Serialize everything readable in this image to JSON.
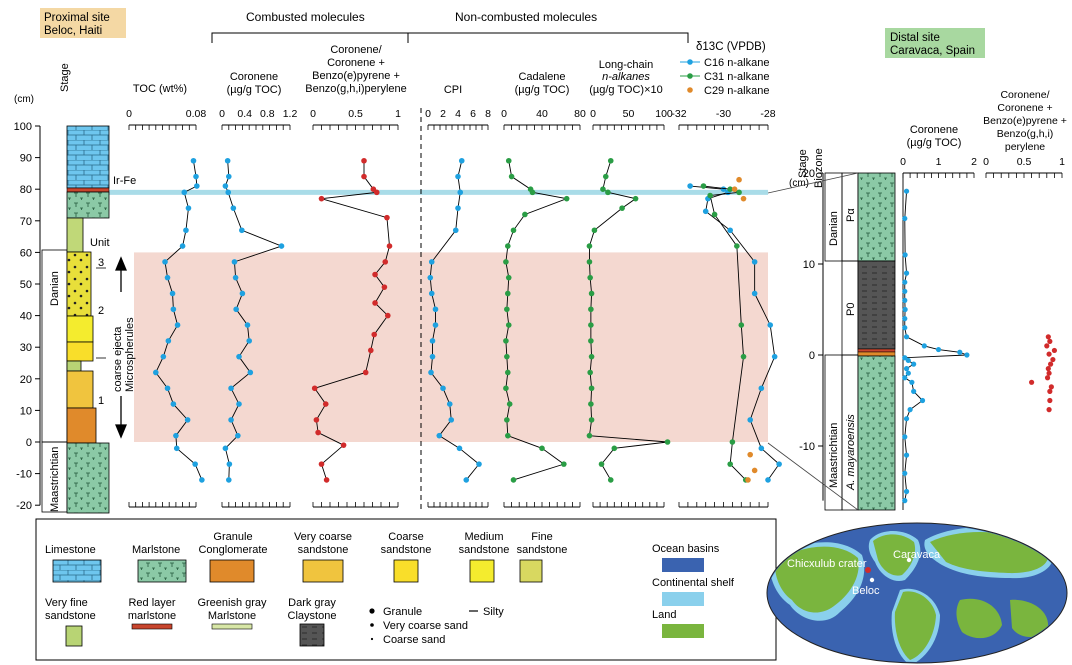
{
  "proximal": {
    "title1": "Proximal site",
    "title2": "Beloc, Haiti"
  },
  "distal": {
    "title1": "Distal site",
    "title2": "Caravaca, Spain"
  },
  "groups": {
    "combusted": "Combusted molecules",
    "noncombusted": "Non-combusted molecules"
  },
  "unit_label": "Unit",
  "units": [
    "3",
    "2",
    "1"
  ],
  "stage_header": "Stage",
  "biozone_header": "Biozone",
  "cm_label": "(cm)",
  "stages_left": {
    "danian": "Danian",
    "maastrichtian": "Maastrichtian"
  },
  "stages_right": {
    "danian": "Danian",
    "maastrichtian": "Maastrichtian"
  },
  "biozones": {
    "pa": "Pα",
    "p0": "P0",
    "amay": "A. mayaroensis"
  },
  "ejecta_label": "coarse ejecta",
  "spherules_label": "Microspherules",
  "irfe_label": "Ir-Fe",
  "headers": {
    "toc": "TOC (wt%)",
    "coronene_1": "Coronene",
    "coronene_2": "(µg/g TOC)",
    "ratio_1": "Coronene/",
    "ratio_2": "Coronene +",
    "ratio_3": "Benzo(e)pyrene +",
    "ratio_4": "Benzo(g,h,i)perylene",
    "cpi": "CPI",
    "cadalene_1": "Cadalene",
    "cadalene_2": "(µg/g TOC)",
    "longchain_1": "Long-chain",
    "longchain_2": "n-alkanes",
    "longchain_3": "(µg/g TOC)×10",
    "d13c": "δ13C (VPDB)"
  },
  "legend_d13c": [
    "C16 n-alkane",
    "C31 n-alkane",
    "C29 n-alkane"
  ],
  "distal_headers": {
    "coronene_1": "Coronene",
    "coronene_2": "(µg/g TOC)",
    "ratio_1": "Coronene/",
    "ratio_2": "Coronene +",
    "ratio_3": "Benzo(e)pyrene +",
    "ratio_4": "Benzo(g,h,i)",
    "ratio_5": "perylene"
  },
  "lithology_legend": [
    {
      "label1": "Limestone",
      "label2": ""
    },
    {
      "label1": "Marlstone",
      "label2": ""
    },
    {
      "label1": "Granule",
      "label2": "Conglomerate"
    },
    {
      "label1": "Very coarse",
      "label2": "sandstone"
    },
    {
      "label1": "Coarse",
      "label2": "sandstone"
    },
    {
      "label1": "Medium",
      "label2": "sandstone"
    },
    {
      "label1": "Fine",
      "label2": "sandstone"
    },
    {
      "label1": "Very fine",
      "label2": "sandstone"
    },
    {
      "label1": "Red layer",
      "label2": "marlstone"
    },
    {
      "label1": "Greenish gray",
      "label2": "Marlstone"
    },
    {
      "label1": "Dark gray",
      "label2": "Claystone"
    }
  ],
  "grain_legend": [
    "Granule",
    "Very coarse sand",
    "Coarse sand",
    "Silty"
  ],
  "map_legend": [
    "Ocean basins",
    "Continental shelf",
    "Land"
  ],
  "map_labels": {
    "crater": "Chicxulub crater",
    "caravaca": "Caravaca",
    "beloc": "Beloc"
  },
  "colors": {
    "c16": "#1ea1e0",
    "c31": "#2a9d45",
    "c29": "#e08a2b",
    "ratio": "#d12b2b",
    "boundary": "#a9dce8",
    "ejecta": "#f4d8d0"
  },
  "chart_data": [
    {
      "type": "line",
      "title": "TOC (wt%)",
      "axis_ticks": [
        0,
        0.08
      ],
      "depth_cm": [
        89,
        84,
        81,
        79,
        74,
        67,
        62,
        57,
        52,
        47,
        42,
        37,
        32,
        27,
        22,
        17,
        12,
        7,
        2,
        -2,
        -7,
        -12
      ],
      "values": [
        0.077,
        0.08,
        0.081,
        0.066,
        0.071,
        0.068,
        0.064,
        0.043,
        0.046,
        0.052,
        0.053,
        0.058,
        0.047,
        0.041,
        0.032,
        0.046,
        0.053,
        0.07,
        0.056,
        0.057,
        0.079,
        0.087
      ]
    },
    {
      "type": "line",
      "title": "Coronene (µg/g TOC)",
      "axis_ticks": [
        0,
        0.4,
        0.8,
        1.2
      ],
      "depth_cm": [
        89,
        84,
        81,
        79,
        74,
        67,
        62,
        57,
        52,
        47,
        42,
        37,
        32,
        27,
        22,
        17,
        12,
        7,
        2,
        -2,
        -7,
        -12
      ],
      "values": [
        0.1,
        0.12,
        0.06,
        0.11,
        0.2,
        0.35,
        1.05,
        0.22,
        0.24,
        0.36,
        0.25,
        0.45,
        0.48,
        0.3,
        0.5,
        0.16,
        0.3,
        0.16,
        0.28,
        0.06,
        0.13,
        0.12
      ]
    },
    {
      "type": "line",
      "title": "Coronene / (Coronene + Benzo(e)pyrene + Benzo(g,h,i)perylene)",
      "axis_ticks": [
        0,
        0.5,
        1
      ],
      "depth_cm": [
        89,
        84,
        80,
        79,
        77,
        71,
        62,
        57,
        53,
        49,
        44,
        40,
        34,
        29,
        22,
        17,
        12,
        7,
        3,
        -1,
        -7,
        -12
      ],
      "values": [
        0.6,
        0.6,
        0.71,
        0.75,
        0.1,
        0.87,
        0.9,
        0.85,
        0.73,
        0.84,
        0.73,
        0.88,
        0.72,
        0.68,
        0.62,
        0.02,
        0.15,
        0.04,
        0.06,
        0.36,
        0.1,
        0.16
      ]
    },
    {
      "type": "line",
      "title": "CPI",
      "axis_ticks": [
        0,
        2,
        4,
        6,
        8
      ],
      "depth_cm": [
        89,
        84,
        79,
        74,
        67,
        57,
        52,
        47,
        42,
        37,
        32,
        27,
        22,
        17,
        12,
        7,
        2,
        -2,
        -7,
        -12
      ],
      "values": [
        4.5,
        4.0,
        4.3,
        4.0,
        3.7,
        0.5,
        0.3,
        0.5,
        1.0,
        1.0,
        0.6,
        0.6,
        0.4,
        2.0,
        2.9,
        3.1,
        1.5,
        4.2,
        6.8,
        5.1
      ]
    },
    {
      "type": "line",
      "title": "Cadalene (µg/g TOC)",
      "axis_ticks": [
        0,
        40,
        80
      ],
      "depth_cm": [
        89,
        84,
        80,
        79,
        77,
        72,
        67,
        62,
        57,
        52,
        47,
        42,
        37,
        32,
        27,
        22,
        17,
        12,
        7,
        2,
        -2,
        -7,
        -12
      ],
      "values": [
        5,
        8,
        28,
        30,
        66,
        22,
        10,
        4,
        2,
        5,
        4,
        3,
        5,
        2,
        3,
        4,
        2,
        6,
        3,
        4,
        40,
        63,
        10
      ]
    },
    {
      "type": "line",
      "title": "Long-chain n-alkanes (µg/g TOC)×10",
      "axis_ticks": [
        0,
        50,
        100
      ],
      "depth_cm": [
        89,
        84,
        80,
        79,
        77,
        74,
        67,
        62,
        57,
        52,
        47,
        42,
        37,
        32,
        27,
        22,
        17,
        12,
        7,
        2,
        0,
        -2,
        -7,
        -12
      ],
      "values": [
        25,
        18,
        14,
        21,
        60,
        41,
        2,
        -5,
        -5,
        -4,
        -2,
        -3,
        -3,
        -3,
        -2,
        -4,
        -2,
        -3,
        -2,
        -5,
        105,
        30,
        12,
        25
      ]
    },
    {
      "type": "scatter",
      "title": "δ13C (VPDB)",
      "axis_ticks": [
        -32,
        -30,
        -28
      ],
      "series": [
        {
          "name": "C16 n-alkane",
          "depth_cm": [
            81,
            80,
            79,
            77,
            73,
            67,
            57,
            47,
            37,
            27,
            17,
            7,
            -2,
            -7,
            -12
          ],
          "values": [
            -31.5,
            -30.0,
            -29.8,
            -30.7,
            -30.8,
            -29.7,
            -28.6,
            -28.6,
            -27.9,
            -27.7,
            -28.3,
            -28.8,
            -28.3,
            -27.5,
            -28.0
          ]
        },
        {
          "name": "C31 n-alkane",
          "depth_cm": [
            81,
            80,
            79,
            78,
            72,
            62,
            37,
            27,
            0,
            -7,
            -12
          ],
          "values": [
            -30.9,
            -29.7,
            -29.3,
            -30.6,
            -30.4,
            -29.4,
            -29.2,
            -29.1,
            -29.6,
            -29.7,
            -29.0
          ]
        },
        {
          "name": "C29 n-alkane",
          "depth_cm": [
            83,
            80,
            77,
            -4,
            -9,
            -12
          ],
          "values": [
            -29.3,
            -29.5,
            -29.1,
            -28.8,
            -28.6,
            -28.9
          ]
        }
      ]
    },
    {
      "type": "line",
      "title": "Caravaca coronene (µg/g TOC)",
      "axis_ticks": [
        0,
        1,
        2
      ],
      "depth_cm": [
        18,
        15,
        11,
        9,
        8,
        7,
        6,
        5,
        4,
        3,
        2,
        1,
        0.6,
        0.3,
        0,
        -0.3,
        -0.6,
        -1,
        -1.5,
        -2,
        -2.5,
        -3,
        -4,
        -5,
        -6,
        -7,
        -9,
        -11,
        -13,
        -15,
        -16
      ],
      "values": [
        0.1,
        0.05,
        0.06,
        0.1,
        0.05,
        0.05,
        0.05,
        0.06,
        0.05,
        0.05,
        0.1,
        0.6,
        1.0,
        1.6,
        1.8,
        0.05,
        0.15,
        0.3,
        0.1,
        0.15,
        0.05,
        0.25,
        0.3,
        0.55,
        0.2,
        0.1,
        0.05,
        0.1,
        0.05,
        0.1,
        0.05
      ]
    },
    {
      "type": "scatter",
      "title": "Caravaca coronene ratio",
      "axis_ticks": [
        0,
        0.5,
        1
      ],
      "depth_cm": [
        2.0,
        1.5,
        1.0,
        0.5,
        0.1,
        -0.5,
        -1.0,
        -1.5,
        -2.0,
        -2.5,
        -3.0,
        -3.5,
        -4.0,
        -5.0,
        -6.0
      ],
      "values": [
        0.82,
        0.84,
        0.8,
        0.9,
        0.83,
        0.88,
        0.85,
        0.82,
        0.83,
        0.81,
        0.6,
        0.86,
        0.84,
        0.84,
        0.83
      ]
    }
  ]
}
